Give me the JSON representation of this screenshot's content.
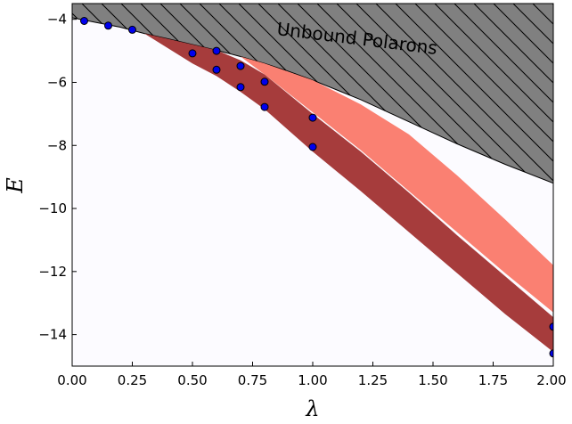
{
  "chart_data": {
    "type": "area",
    "xlabel": "λ",
    "ylabel": "E",
    "xlim": [
      0.0,
      2.0
    ],
    "ylim": [
      -15.0,
      -3.5
    ],
    "grid": false,
    "x_ticks": [
      "0.00",
      "0.25",
      "0.50",
      "0.75",
      "1.00",
      "1.25",
      "1.50",
      "1.75",
      "2.00"
    ],
    "y_ticks": [
      "−14",
      "−12",
      "−10",
      "−8",
      "−6",
      "−4"
    ],
    "annotation": "Unbound Polarons",
    "colors": {
      "plot_background": "#fcfbff",
      "unbound_region": "#808080",
      "dark_band": "#a63c3c",
      "light_band": "#fa8072",
      "points": "#0000ee",
      "point_edge": "#000000"
    },
    "unbound_boundary": {
      "x": [
        0.0,
        0.1,
        0.2,
        0.3,
        0.4,
        0.5,
        0.6,
        0.7,
        0.8,
        0.9,
        1.0,
        1.2,
        1.4,
        1.6,
        1.8,
        2.0
      ],
      "y": [
        -3.95,
        -4.1,
        -4.25,
        -4.45,
        -4.62,
        -4.8,
        -4.98,
        -5.18,
        -5.4,
        -5.65,
        -5.93,
        -6.55,
        -7.25,
        -7.95,
        -8.6,
        -9.2
      ]
    },
    "dark_band": {
      "x": [
        0.3,
        0.5,
        0.6,
        0.7,
        0.8,
        1.0,
        1.2,
        1.4,
        1.6,
        1.8,
        2.0
      ],
      "upper": [
        -4.45,
        -4.8,
        -4.98,
        -5.3,
        -5.75,
        -7.0,
        -8.2,
        -9.5,
        -10.85,
        -12.15,
        -13.45
      ],
      "lower": [
        -4.45,
        -5.4,
        -5.8,
        -6.3,
        -6.85,
        -8.2,
        -9.45,
        -10.75,
        -12.05,
        -13.35,
        -14.55
      ]
    },
    "light_band": {
      "x": [
        0.7,
        0.8,
        1.0,
        1.2,
        1.4,
        1.6,
        1.8,
        2.0
      ],
      "upper": [
        -5.18,
        -5.4,
        -5.93,
        -6.7,
        -7.65,
        -8.95,
        -10.35,
        -11.8
      ],
      "lower": [
        -5.18,
        -5.75,
        -6.95,
        -8.15,
        -9.45,
        -10.75,
        -12.05,
        -13.3
      ]
    },
    "points": {
      "x": [
        0.05,
        0.15,
        0.25,
        0.5,
        0.6,
        0.6,
        0.7,
        0.7,
        0.8,
        0.8,
        1.0,
        1.0,
        2.0,
        2.0
      ],
      "y": [
        -4.05,
        -4.2,
        -4.33,
        -5.08,
        -5.0,
        -5.6,
        -5.48,
        -6.15,
        -5.98,
        -6.78,
        -7.12,
        -8.05,
        -13.75,
        -14.6
      ]
    }
  }
}
